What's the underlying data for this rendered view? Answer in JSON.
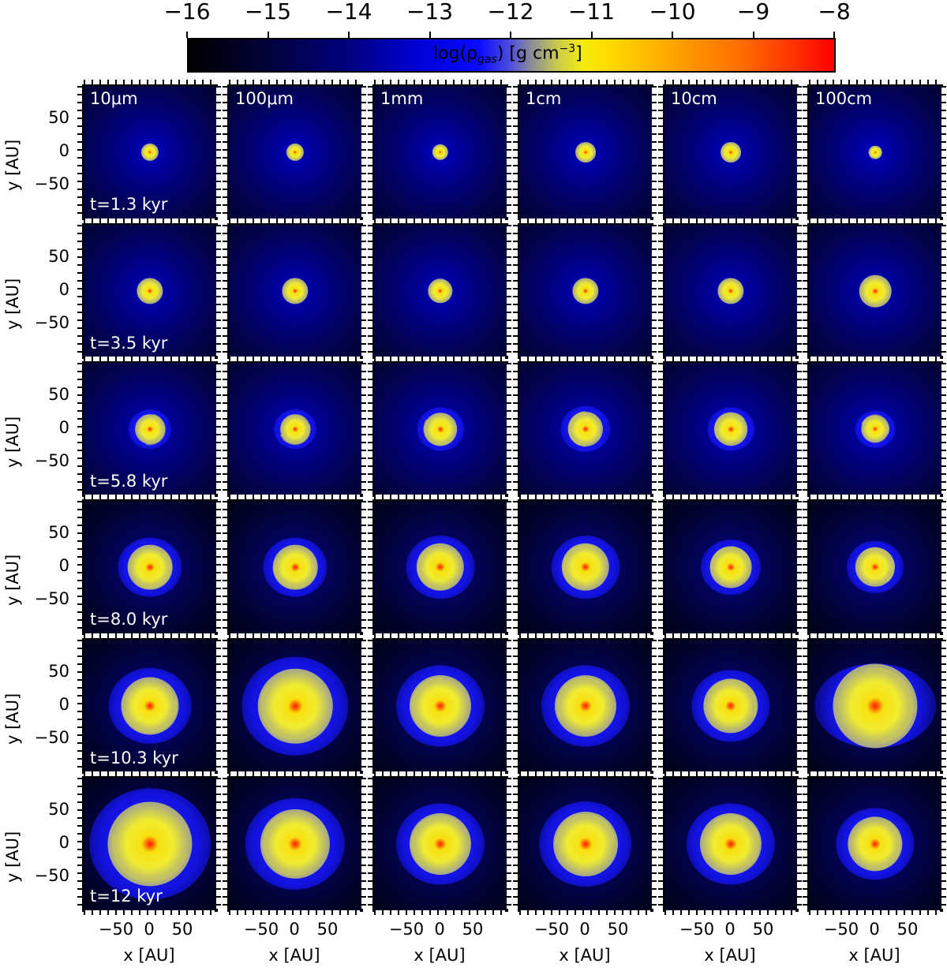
{
  "chart_data": {
    "type": "heatmap",
    "title": "",
    "description": "6x6 grid of face-on gas density maps of a protoplanetary disc; columns = dust grain size, rows = time",
    "colorbar": {
      "label": "log(ρ_gas) [g cm^-3]",
      "label_main": "log(ρ",
      "label_sub": "gas",
      "label_units": ") [g cm",
      "label_sup": "−3",
      "label_end": "]",
      "range": [
        -16,
        -8
      ],
      "ticks": [
        -16,
        -15,
        -14,
        -13,
        -12,
        -11,
        -10,
        -9,
        -8
      ],
      "tick_labels": [
        "−16",
        "−15",
        "−14",
        "−13",
        "−12",
        "−11",
        "−10",
        "−9",
        "−8"
      ],
      "colormap": [
        "#000000",
        "#000080",
        "#0000ff",
        "#8a8a9a",
        "#f4ec10",
        "#ffc000",
        "#ff6a00",
        "#ff0000"
      ],
      "position": "top"
    },
    "columns": [
      "10μm",
      "100μm",
      "1mm",
      "1cm",
      "10cm",
      "100cm"
    ],
    "rows": [
      "t=1.3 kyr",
      "t=3.5 kyr",
      "t=5.8 kyr",
      "t=8.0 kyr",
      "t=10.3 kyr",
      "t=12 kyr"
    ],
    "times_kyr": [
      1.3,
      3.5,
      5.8,
      8.0,
      10.3,
      12
    ],
    "xlabel": "x [AU]",
    "ylabel": "y [AU]",
    "xlim": [
      -100,
      100
    ],
    "ylim": [
      -100,
      100
    ],
    "xticks": [
      -50,
      0,
      50
    ],
    "xtick_labels": [
      "−50",
      "0",
      "50"
    ],
    "yticks": [
      50,
      0,
      -50
    ],
    "ytick_labels": [
      "50",
      "0",
      "−50"
    ],
    "grid": false,
    "approx_disc_radius_AU": [
      [
        12,
        12,
        11,
        14,
        14,
        9
      ],
      [
        18,
        18,
        17,
        18,
        18,
        22
      ],
      [
        30,
        30,
        33,
        35,
        33,
        28
      ],
      [
        45,
        45,
        48,
        48,
        42,
        40
      ],
      [
        58,
        75,
        62,
        62,
        55,
        85
      ],
      [
        85,
        70,
        62,
        65,
        62,
        55
      ]
    ],
    "peak_log_density_center": -8.5
  }
}
